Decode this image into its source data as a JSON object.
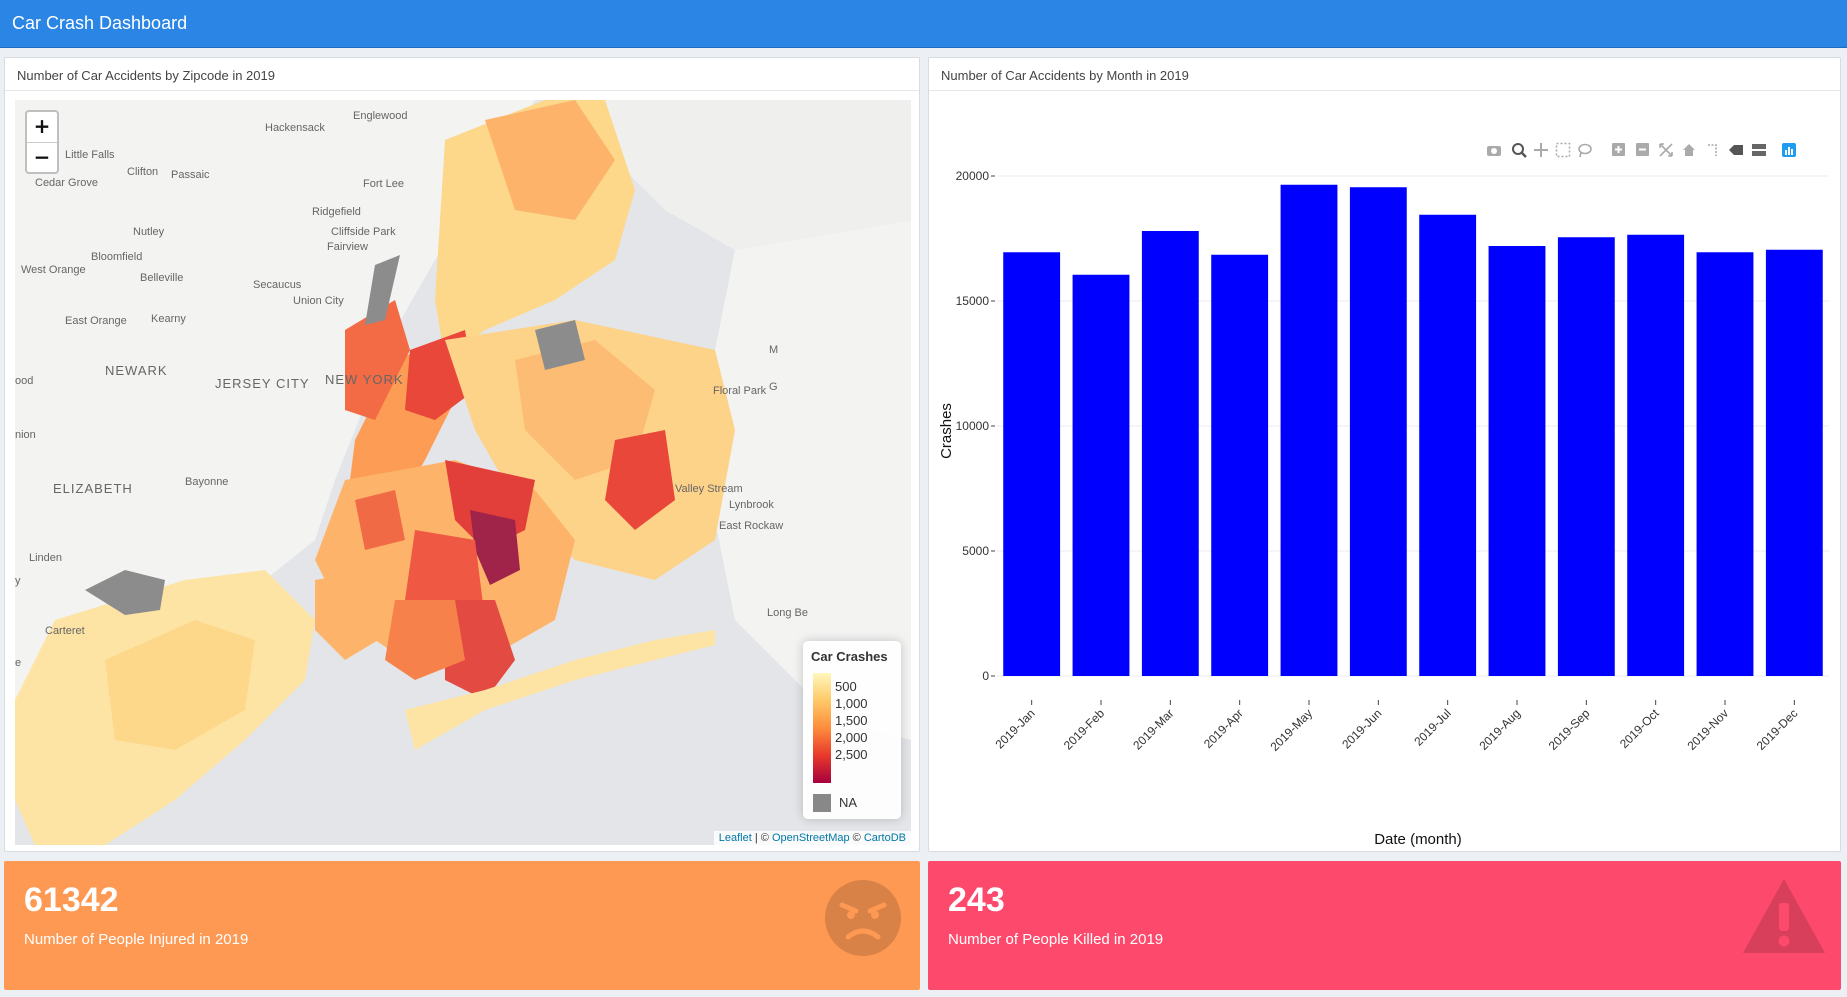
{
  "app": {
    "title": "Car Crash Dashboard"
  },
  "map_panel": {
    "title": "Number of Car Accidents by Zipcode in 2019",
    "zoom_in": "+",
    "zoom_out": "−",
    "place_labels": [
      "Englewood",
      "Hackensack",
      "Little Falls",
      "Clifton",
      "Passaic",
      "Cedar Grove",
      "Fort Lee",
      "Ridgefield",
      "Nutley",
      "Cliffside Park",
      "Fairview",
      "Bloomfield",
      "West Orange",
      "Belleville",
      "Secaucus",
      "Union City",
      "East Orange",
      "Kearny",
      "NEWARK",
      "JERSEY CITY",
      "NEW YORK",
      "Floral Park",
      "ood",
      "nion",
      "Bayonne",
      "ELIZABETH",
      "Valley Stream",
      "Lynbrook",
      "East Rockaw",
      "Linden",
      "y",
      "Carteret",
      "e",
      "M",
      "G",
      "Long Be"
    ],
    "legend": {
      "title": "Car Crashes",
      "ticks": [
        "500",
        "1,000",
        "1,500",
        "2,000",
        "2,500"
      ],
      "na_label": "NA",
      "colors": [
        "#fff7bc",
        "#fec967",
        "#fd8c3c",
        "#e8392c",
        "#a6003e"
      ],
      "na_color": "#888888"
    },
    "attribution": {
      "leaflet": "Leaflet",
      "sep1": " | © ",
      "osm": "OpenStreetMap",
      "sep2": " © ",
      "carto": "CartoDB"
    }
  },
  "chart_panel": {
    "title": "Number of Car Accidents by Month in 2019",
    "toolbar_icons": [
      "camera-icon",
      "zoom-icon",
      "pan-icon",
      "box-select-icon",
      "lasso-icon",
      "zoom-in-icon",
      "zoom-out-icon",
      "autoscale-icon",
      "home-icon",
      "spike-lines-icon",
      "hover-closest-icon",
      "hover-compare-icon",
      "plotly-logo-icon"
    ]
  },
  "chart_data": {
    "type": "bar",
    "categories": [
      "2019-Jan",
      "2019-Feb",
      "2019-Mar",
      "2019-Apr",
      "2019-May",
      "2019-Jun",
      "2019-Jul",
      "2019-Aug",
      "2019-Sep",
      "2019-Oct",
      "2019-Nov",
      "2019-Dec"
    ],
    "values": [
      16950,
      16050,
      17800,
      16850,
      19650,
      19550,
      18450,
      17200,
      17550,
      17650,
      16950,
      17050
    ],
    "xlabel": "Date (month)",
    "ylabel": "Crashes",
    "ylim": [
      0,
      20000
    ],
    "yticks": [
      0,
      5000,
      10000,
      15000,
      20000
    ],
    "ytick_labels": [
      "0",
      "5000",
      "10000",
      "15000",
      "20000"
    ],
    "bar_color": "#0000ff",
    "grid": true
  },
  "stats": {
    "injured": {
      "value": "61342",
      "label": "Number of People Injured in 2019",
      "icon": "angry-face-icon",
      "color": "#fe9954"
    },
    "killed": {
      "value": "243",
      "label": "Number of People Killed in 2019",
      "icon": "warning-icon",
      "color": "#fd4a6c"
    }
  }
}
